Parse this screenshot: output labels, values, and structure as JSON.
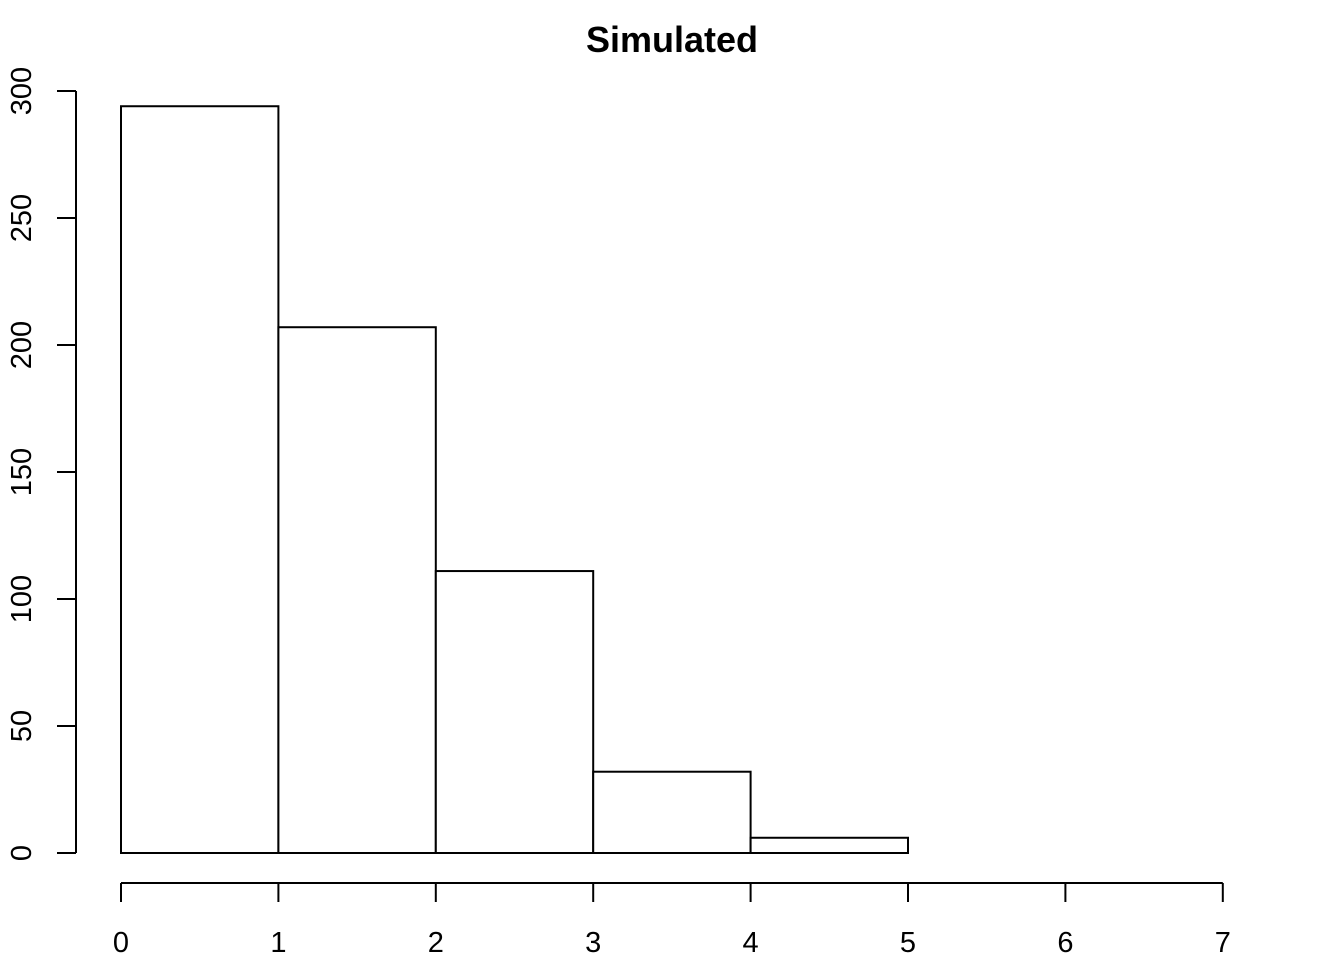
{
  "chart_data": {
    "type": "bar",
    "title": "Simulated",
    "xlabel": "",
    "ylabel": "",
    "bins": [
      {
        "x0": 0,
        "x1": 1,
        "count": 294
      },
      {
        "x0": 1,
        "x1": 2,
        "count": 207
      },
      {
        "x0": 2,
        "x1": 3,
        "count": 111
      },
      {
        "x0": 3,
        "x1": 4,
        "count": 32
      },
      {
        "x0": 4,
        "x1": 5,
        "count": 6
      }
    ],
    "xlim": [
      0,
      7
    ],
    "ylim": [
      0,
      300
    ],
    "x_ticks": [
      "0",
      "1",
      "2",
      "3",
      "4",
      "5",
      "6",
      "7"
    ],
    "y_ticks": [
      "0",
      "50",
      "100",
      "150",
      "200",
      "250",
      "300"
    ],
    "grid": false,
    "bar_fill": "#ffffff",
    "bar_stroke": "#000000"
  }
}
